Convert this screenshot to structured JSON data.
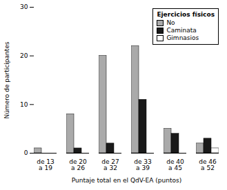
{
  "chart_data": {
    "type": "bar",
    "categories": [
      "de 13\na 19",
      "de 20\na 26",
      "de 27\na 32",
      "de 33\na 39",
      "de 40\na 45",
      "de 46\na 52"
    ],
    "series": [
      {
        "name": "No",
        "color": "#aaaaaa",
        "values": [
          1,
          8,
          20,
          22,
          5,
          2
        ]
      },
      {
        "name": "Caminata",
        "color": "#1a1a1a",
        "values": [
          0,
          1,
          2,
          11,
          4,
          3
        ]
      },
      {
        "name": "Gimnasios",
        "color": "#ffffff",
        "values": [
          0,
          0,
          0,
          0,
          0,
          1
        ]
      }
    ],
    "xlabel": "Puntaje total en el QdV-EA (puntos)",
    "ylabel": "Número de participantes",
    "legend_title": "Ejercicios físicos",
    "legend": "upper right",
    "grid": false,
    "ylim": [
      0,
      30
    ],
    "yticks": [
      0,
      10,
      20,
      30
    ]
  }
}
